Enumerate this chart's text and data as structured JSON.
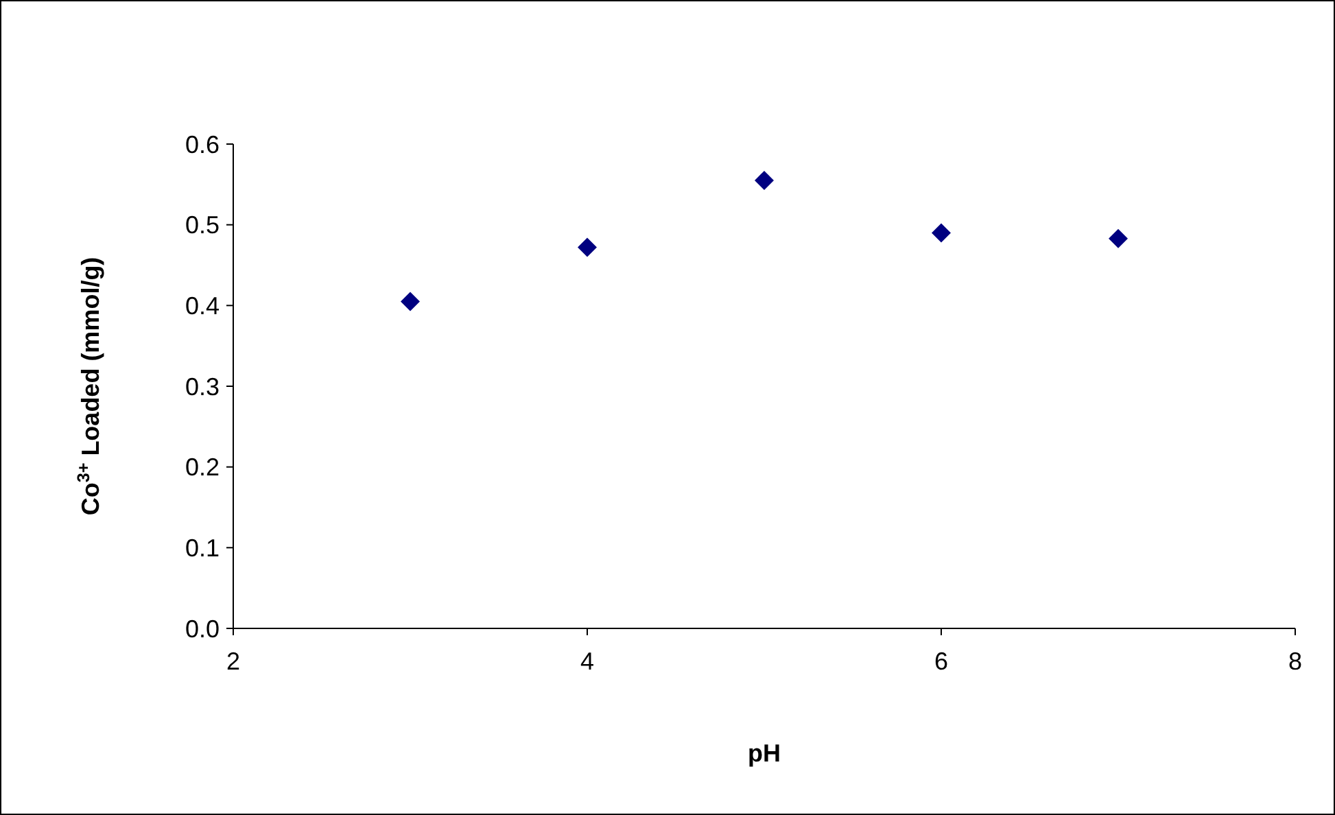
{
  "chart_data": {
    "type": "scatter",
    "xlabel": "pH",
    "ylabel": "Co$^{3+}$ Loaded (mmol/g)",
    "x": [
      3,
      4,
      5,
      6,
      7
    ],
    "series": [
      {
        "color": "#000080",
        "values": [
          0.405,
          0.472,
          0.555,
          0.49,
          0.483
        ]
      }
    ],
    "xlim": [
      2,
      8
    ],
    "xticks": [
      2,
      4,
      6,
      8
    ],
    "ylim": [
      0,
      0.6
    ],
    "yticks": [
      {
        "value": 0,
        "label": "0.0"
      },
      {
        "value": 0.1,
        "label": "0.1"
      },
      {
        "value": 0.2,
        "label": "0.2"
      },
      {
        "value": 0.3,
        "label": "0.3"
      },
      {
        "value": 0.4,
        "label": "0.4"
      },
      {
        "value": 0.5,
        "label": "0.5"
      },
      {
        "value": 0.6,
        "label": "0.6"
      }
    ],
    "marker": "diamond",
    "grid": false
  }
}
